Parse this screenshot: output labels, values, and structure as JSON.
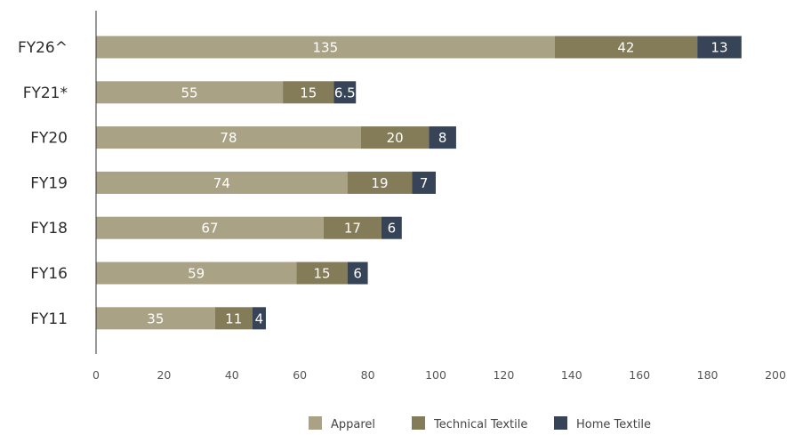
{
  "chart_data": {
    "type": "bar",
    "orientation": "horizontal",
    "stacked": true,
    "title": "",
    "xlabel": "",
    "ylabel": "",
    "xlim": [
      0,
      200
    ],
    "xticks": [
      0,
      20,
      40,
      60,
      80,
      100,
      120,
      140,
      160,
      180,
      200
    ],
    "grid": false,
    "legend_position": "bottom",
    "categories": [
      "FY26^",
      "FY21*",
      "FY20",
      "FY19",
      "FY18",
      "FY16",
      "FY11"
    ],
    "series": [
      {
        "name": "Apparel",
        "color": "#a9a285",
        "values": [
          135,
          55,
          78,
          74,
          67,
          59,
          35
        ]
      },
      {
        "name": "Technical Textile",
        "color": "#847b58",
        "values": [
          42,
          15,
          20,
          19,
          17,
          15,
          11
        ]
      },
      {
        "name": "Home Textile",
        "color": "#374356",
        "values": [
          13,
          6.5,
          8,
          7,
          6,
          6,
          4
        ]
      }
    ]
  }
}
